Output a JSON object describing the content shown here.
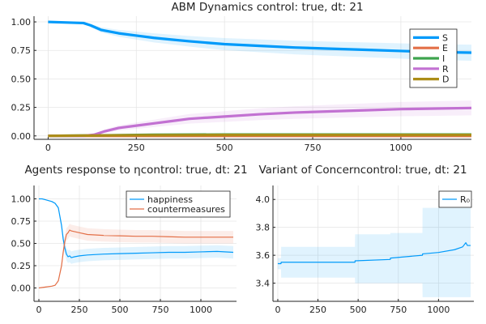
{
  "chart_data": [
    {
      "type": "line",
      "title": "ABM Dynamics control: true, dt: 21",
      "xlabel": "",
      "ylabel": "",
      "xlim": [
        -40,
        1200
      ],
      "ylim": [
        -0.03,
        1.05
      ],
      "xticks": [
        0,
        250,
        500,
        750,
        1000
      ],
      "yticks": [
        0.0,
        0.25,
        0.5,
        0.75,
        1.0
      ],
      "grid": true,
      "legend_position": "top-right",
      "series": [
        {
          "name": "S",
          "color": "#009AFA",
          "x": [
            0,
            100,
            120,
            150,
            200,
            250,
            300,
            350,
            400,
            500,
            600,
            700,
            800,
            900,
            1000,
            1100,
            1200
          ],
          "y": [
            1.0,
            0.99,
            0.97,
            0.93,
            0.9,
            0.88,
            0.86,
            0.845,
            0.83,
            0.805,
            0.79,
            0.775,
            0.765,
            0.755,
            0.745,
            0.735,
            0.73
          ]
        },
        {
          "name": "E",
          "color": "#E36F47",
          "x": [
            0,
            1200
          ],
          "y": [
            0.0,
            0.0
          ]
        },
        {
          "name": "I",
          "color": "#3EA44E",
          "x": [
            0,
            150,
            300,
            500,
            1200
          ],
          "y": [
            0.0,
            0.005,
            0.01,
            0.012,
            0.012
          ]
        },
        {
          "name": "R",
          "color": "#C271D2",
          "x": [
            0,
            100,
            130,
            160,
            200,
            250,
            300,
            350,
            400,
            500,
            600,
            700,
            800,
            900,
            1000,
            1100,
            1200
          ],
          "y": [
            0.0,
            0.0,
            0.01,
            0.04,
            0.07,
            0.09,
            0.11,
            0.13,
            0.15,
            0.17,
            0.19,
            0.205,
            0.215,
            0.225,
            0.235,
            0.24,
            0.245
          ]
        },
        {
          "name": "D",
          "color": "#AC8D18",
          "x": [
            0,
            150,
            300,
            500,
            1200
          ],
          "y": [
            0.0,
            0.004,
            0.006,
            0.008,
            0.008
          ]
        }
      ]
    },
    {
      "type": "line",
      "title": "Agents response to ηcontrol: true, dt: 21",
      "xlabel": "",
      "ylabel": "",
      "xlim": [
        -30,
        1220
      ],
      "ylim": [
        -0.15,
        1.15
      ],
      "xticks": [
        0,
        250,
        500,
        750,
        1000
      ],
      "yticks": [
        0.0,
        0.25,
        0.5,
        0.75,
        1.0
      ],
      "grid": true,
      "legend_position": "top-right",
      "series": [
        {
          "name": "happiness",
          "color": "#009AFA",
          "x": [
            0,
            20,
            40,
            60,
            80,
            100,
            120,
            140,
            150,
            160,
            170,
            180,
            190,
            200,
            220,
            250,
            300,
            400,
            500,
            600,
            700,
            800,
            900,
            1000,
            1100,
            1200
          ],
          "y": [
            1.0,
            1.0,
            0.99,
            0.98,
            0.97,
            0.95,
            0.9,
            0.7,
            0.55,
            0.45,
            0.38,
            0.35,
            0.36,
            0.34,
            0.35,
            0.36,
            0.37,
            0.38,
            0.385,
            0.39,
            0.395,
            0.4,
            0.4,
            0.405,
            0.41,
            0.4
          ]
        },
        {
          "name": "countermeasures",
          "color": "#E36F47",
          "x": [
            0,
            40,
            80,
            100,
            120,
            140,
            150,
            160,
            170,
            180,
            190,
            200,
            250,
            300,
            400,
            500,
            600,
            700,
            800,
            900,
            1000,
            1100,
            1200
          ],
          "y": [
            0.0,
            0.01,
            0.02,
            0.03,
            0.08,
            0.25,
            0.4,
            0.52,
            0.6,
            0.62,
            0.65,
            0.64,
            0.62,
            0.6,
            0.59,
            0.585,
            0.58,
            0.58,
            0.575,
            0.57,
            0.57,
            0.57,
            0.57
          ]
        }
      ]
    },
    {
      "type": "line",
      "title": "Variant of Concerncontrol: true, dt: 21",
      "xlabel": "",
      "ylabel": "",
      "xlim": [
        -30,
        1220
      ],
      "ylim": [
        3.27,
        4.1
      ],
      "xticks": [
        0,
        250,
        500,
        750,
        1000
      ],
      "yticks": [
        3.4,
        3.6,
        3.8,
        4.0
      ],
      "grid": true,
      "legend_position": "top-right",
      "series": [
        {
          "name": "R₀",
          "color": "#009AFA",
          "x": [
            0,
            20,
            21,
            150,
            300,
            480,
            481,
            700,
            701,
            900,
            901,
            1000,
            1100,
            1150,
            1170,
            1180,
            1200
          ],
          "y": [
            3.54,
            3.54,
            3.55,
            3.55,
            3.55,
            3.55,
            3.56,
            3.57,
            3.58,
            3.6,
            3.61,
            3.62,
            3.64,
            3.66,
            3.69,
            3.67,
            3.67
          ],
          "band_upper": [
            3.58,
            3.58,
            3.66,
            3.66,
            3.66,
            3.66,
            3.75,
            3.75,
            3.76,
            3.76,
            3.94,
            3.94,
            3.94,
            3.94,
            3.94,
            3.94,
            3.94
          ],
          "band_lower": [
            3.5,
            3.5,
            3.44,
            3.44,
            3.44,
            3.44,
            3.4,
            3.4,
            3.4,
            3.4,
            3.3,
            3.3,
            3.3,
            3.3,
            3.3,
            3.3,
            3.3
          ]
        }
      ]
    }
  ]
}
